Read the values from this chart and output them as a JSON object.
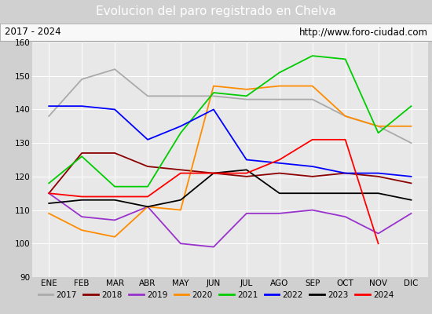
{
  "title": "Evolucion del paro registrado en Chelva",
  "subtitle_left": "2017 - 2024",
  "subtitle_right": "http://www.foro-ciudad.com",
  "months": [
    "ENE",
    "FEB",
    "MAR",
    "ABR",
    "MAY",
    "JUN",
    "JUL",
    "AGO",
    "SEP",
    "OCT",
    "NOV",
    "DIC"
  ],
  "series": {
    "2017": [
      138,
      149,
      152,
      144,
      144,
      144,
      143,
      143,
      143,
      138,
      135,
      130
    ],
    "2018": [
      115,
      127,
      127,
      123,
      122,
      121,
      120,
      121,
      120,
      121,
      120,
      118
    ],
    "2019": [
      115,
      108,
      107,
      111,
      100,
      99,
      109,
      109,
      110,
      108,
      103,
      109
    ],
    "2020": [
      109,
      104,
      102,
      111,
      110,
      147,
      146,
      147,
      147,
      138,
      135,
      135
    ],
    "2021": [
      118,
      126,
      117,
      117,
      133,
      145,
      144,
      151,
      156,
      155,
      133,
      141
    ],
    "2022": [
      141,
      141,
      140,
      131,
      135,
      140,
      125,
      124,
      123,
      121,
      121,
      120
    ],
    "2023": [
      112,
      113,
      113,
      111,
      113,
      121,
      122,
      115,
      115,
      115,
      115,
      113
    ],
    "2024": [
      115,
      114,
      114,
      114,
      121,
      121,
      121,
      125,
      131,
      131,
      100,
      null
    ]
  },
  "colors": {
    "2017": "#aaaaaa",
    "2018": "#8b0000",
    "2019": "#9932cc",
    "2020": "#ff8c00",
    "2021": "#00cc00",
    "2022": "#0000ff",
    "2023": "#000000",
    "2024": "#ff0000"
  },
  "ylim": [
    90,
    160
  ],
  "yticks": [
    90,
    100,
    110,
    120,
    130,
    140,
    150,
    160
  ],
  "title_bg": "#5b9bd5",
  "plot_bg": "#e8e8e8",
  "fig_bg": "#d0d0d0"
}
